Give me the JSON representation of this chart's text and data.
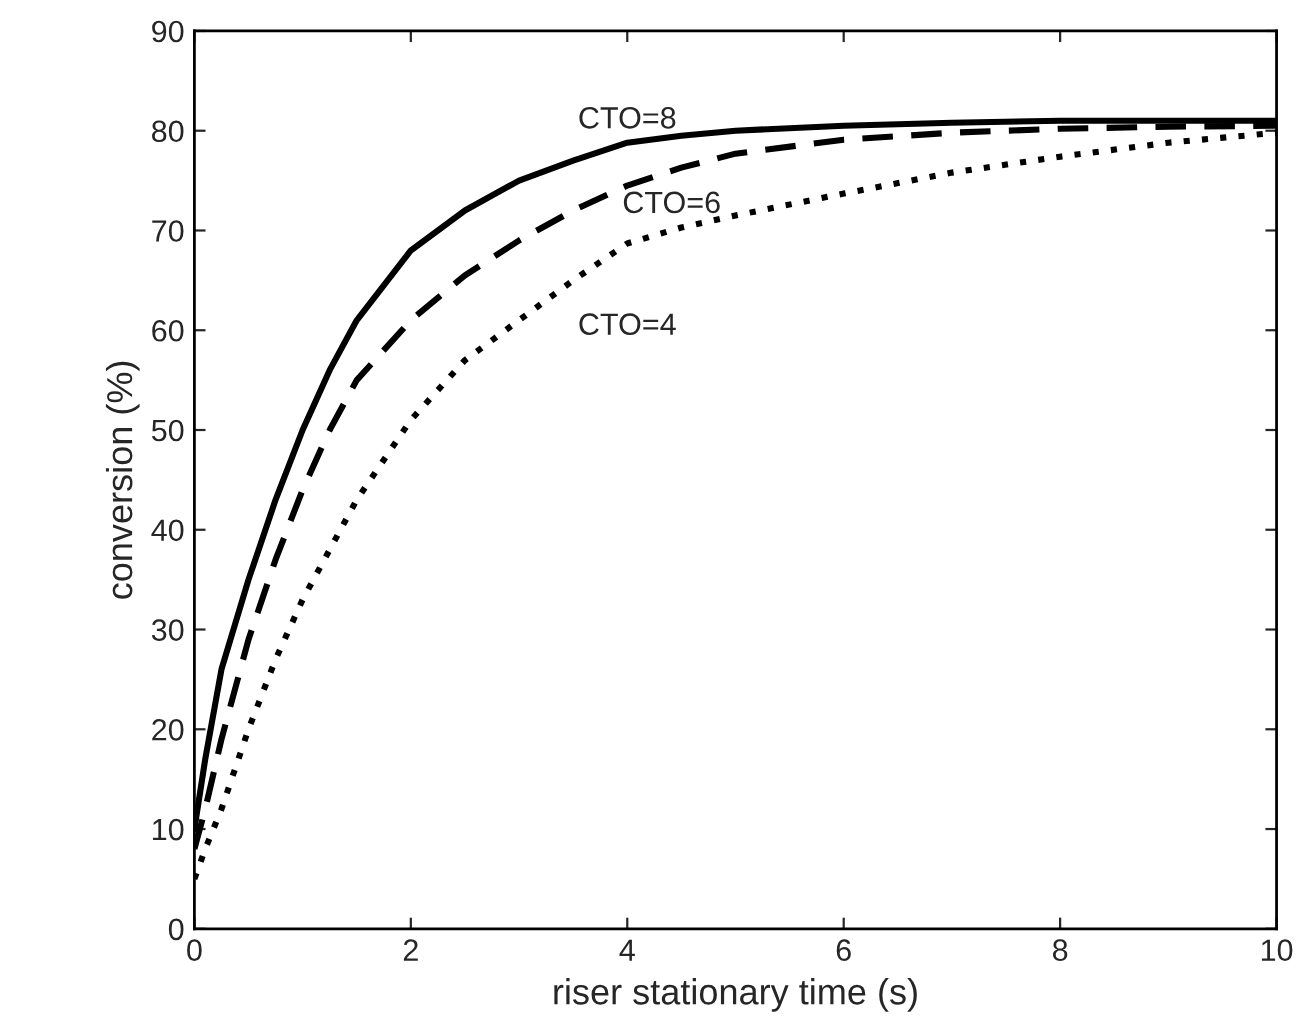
{
  "chart_data": {
    "type": "line",
    "xlabel": "riser stationary time (s)",
    "ylabel": "conversion (%)",
    "xlim": [
      0,
      10
    ],
    "xticks": [
      0,
      2,
      4,
      6,
      8,
      10
    ],
    "ylim": [
      0,
      90
    ],
    "yticks": [
      0,
      10,
      20,
      30,
      40,
      50,
      60,
      70,
      80,
      90
    ],
    "grid": false,
    "x": [
      0,
      0.1,
      0.25,
      0.5,
      0.75,
      1,
      1.25,
      1.5,
      2,
      2.5,
      3,
      3.5,
      4,
      4.5,
      5,
      6,
      7,
      8,
      9,
      10
    ],
    "series": [
      {
        "name": "CTO=8",
        "color": "#000000",
        "line_style": "solid",
        "values": [
          10,
          17,
          26,
          35,
          43,
          50,
          56,
          61,
          68,
          72,
          75,
          77,
          78.8,
          79.5,
          80,
          80.5,
          80.8,
          81,
          81,
          81
        ]
      },
      {
        "name": "CTO=6",
        "color": "#000000",
        "line_style": "dashed",
        "values": [
          8,
          12,
          19,
          29,
          37,
          44,
          50,
          55,
          61,
          65.5,
          69,
          72,
          74.5,
          76.3,
          77.7,
          79.1,
          79.8,
          80.2,
          80.4,
          80.5
        ]
      },
      {
        "name": "CTO=4",
        "color": "#000000",
        "line_style": "dotted",
        "values": [
          5,
          8,
          12,
          20,
          27,
          33,
          38,
          43,
          51,
          57,
          61,
          65,
          68.7,
          70.3,
          71.5,
          73.7,
          75.8,
          77.4,
          78.8,
          79.8
        ]
      }
    ]
  }
}
